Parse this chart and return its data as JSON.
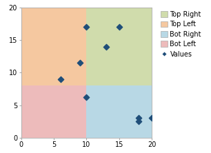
{
  "xlim": [
    0,
    20
  ],
  "ylim": [
    0,
    20
  ],
  "mid_x": 10,
  "mid_y": 8,
  "quadrant_colors": {
    "top_left": "#F5C8A0",
    "top_right": "#D0DCAC",
    "bot_left": "#EDBBBB",
    "bot_right": "#B8D8E5"
  },
  "points_x": [
    6,
    9,
    10,
    10,
    13,
    15,
    18,
    18,
    20
  ],
  "points_y": [
    9,
    11.5,
    6.2,
    17,
    14,
    17,
    3,
    2.5,
    3
  ],
  "point_color": "#1F4E79",
  "point_marker": "D",
  "point_size": 18,
  "xticks": [
    0,
    5,
    10,
    15,
    20
  ],
  "yticks": [
    0,
    5,
    10,
    15,
    20
  ],
  "tick_fontsize": 7,
  "legend_labels": [
    "Top Right",
    "Top Left",
    "Bot Right",
    "Bot Left",
    "Values"
  ],
  "legend_colors": [
    "#D0DCAC",
    "#F5C8A0",
    "#B8D8E5",
    "#EDBBBB"
  ],
  "legend_fontsize": 7,
  "bg_color": "#FFFFFF",
  "spine_color": "#AAAAAA",
  "figsize": [
    3.06,
    2.22
  ],
  "dpi": 100
}
